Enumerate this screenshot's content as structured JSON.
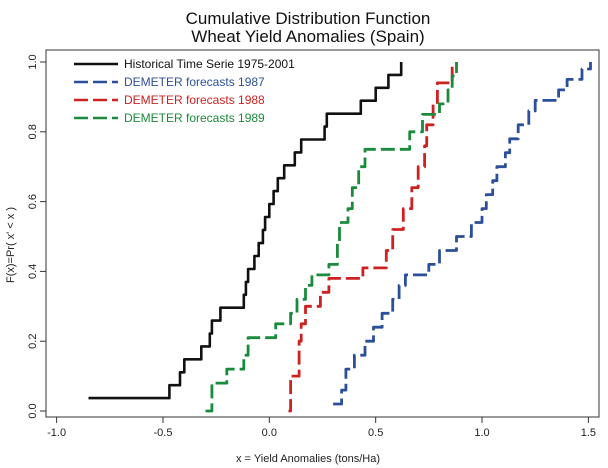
{
  "chart_data": {
    "type": "line",
    "title": "Cumulative Distribution Function",
    "subtitle": "Wheat Yield Anomalies (Spain)",
    "xlabel": "x = Yield Anomalies (tons/Ha)",
    "ylabel": "F(x)=Pr( x' < x )",
    "xlim": [
      -1.05,
      1.55
    ],
    "ylim": [
      0.0,
      1.0
    ],
    "x_ticks": [
      "-1.0",
      "-0.5",
      "0.0",
      "0.5",
      "1.0",
      "1.5"
    ],
    "y_ticks": [
      "0.0",
      "0.2",
      "0.4",
      "0.6",
      "0.8",
      "1.0"
    ],
    "grid": false,
    "legend_position": "top-left",
    "series": [
      {
        "name": "Historical Time Serie 1975-2001",
        "color": "#111111",
        "style": "solid",
        "points": [
          [
            -0.85,
            0.037
          ],
          [
            -0.47,
            0.074
          ],
          [
            -0.42,
            0.111
          ],
          [
            -0.4,
            0.148
          ],
          [
            -0.32,
            0.185
          ],
          [
            -0.28,
            0.222
          ],
          [
            -0.27,
            0.259
          ],
          [
            -0.23,
            0.296
          ],
          [
            -0.12,
            0.333
          ],
          [
            -0.11,
            0.37
          ],
          [
            -0.1,
            0.407
          ],
          [
            -0.07,
            0.444
          ],
          [
            -0.05,
            0.481
          ],
          [
            -0.03,
            0.519
          ],
          [
            -0.02,
            0.556
          ],
          [
            0.0,
            0.593
          ],
          [
            0.02,
            0.63
          ],
          [
            0.04,
            0.667
          ],
          [
            0.07,
            0.704
          ],
          [
            0.12,
            0.741
          ],
          [
            0.15,
            0.778
          ],
          [
            0.26,
            0.815
          ],
          [
            0.27,
            0.852
          ],
          [
            0.43,
            0.889
          ],
          [
            0.5,
            0.926
          ],
          [
            0.56,
            0.963
          ],
          [
            0.62,
            1.0
          ]
        ]
      },
      {
        "name": "DEMETER forecasts 1987",
        "color": "#2b4f9a",
        "style": "dashed",
        "points": [
          [
            0.3,
            0.02
          ],
          [
            0.34,
            0.06
          ],
          [
            0.36,
            0.12
          ],
          [
            0.4,
            0.16
          ],
          [
            0.45,
            0.2
          ],
          [
            0.49,
            0.24
          ],
          [
            0.53,
            0.28
          ],
          [
            0.58,
            0.32
          ],
          [
            0.61,
            0.36
          ],
          [
            0.64,
            0.39
          ],
          [
            0.75,
            0.42
          ],
          [
            0.8,
            0.46
          ],
          [
            0.88,
            0.5
          ],
          [
            0.95,
            0.54
          ],
          [
            1.0,
            0.58
          ],
          [
            1.02,
            0.62
          ],
          [
            1.05,
            0.66
          ],
          [
            1.07,
            0.7
          ],
          [
            1.11,
            0.74
          ],
          [
            1.13,
            0.78
          ],
          [
            1.17,
            0.82
          ],
          [
            1.22,
            0.86
          ],
          [
            1.25,
            0.89
          ],
          [
            1.36,
            0.92
          ],
          [
            1.4,
            0.95
          ],
          [
            1.47,
            0.98
          ],
          [
            1.51,
            1.0
          ]
        ]
      },
      {
        "name": "DEMETER forecasts 1988",
        "color": "#cc2222",
        "style": "dashed",
        "points": [
          [
            0.09,
            0.0
          ],
          [
            0.1,
            0.1
          ],
          [
            0.14,
            0.2
          ],
          [
            0.15,
            0.25
          ],
          [
            0.17,
            0.3
          ],
          [
            0.24,
            0.34
          ],
          [
            0.28,
            0.38
          ],
          [
            0.44,
            0.41
          ],
          [
            0.55,
            0.46
          ],
          [
            0.58,
            0.52
          ],
          [
            0.63,
            0.58
          ],
          [
            0.67,
            0.64
          ],
          [
            0.7,
            0.7
          ],
          [
            0.73,
            0.76
          ],
          [
            0.74,
            0.82
          ],
          [
            0.77,
            0.88
          ],
          [
            0.79,
            0.94
          ],
          [
            0.86,
            1.0
          ]
        ]
      },
      {
        "name": "DEMETER forecasts 1989",
        "color": "#1a8a3c",
        "style": "dashed",
        "points": [
          [
            -0.3,
            0.0
          ],
          [
            -0.27,
            0.08
          ],
          [
            -0.2,
            0.12
          ],
          [
            -0.12,
            0.16
          ],
          [
            -0.1,
            0.21
          ],
          [
            0.03,
            0.25
          ],
          [
            0.1,
            0.28
          ],
          [
            0.13,
            0.32
          ],
          [
            0.17,
            0.36
          ],
          [
            0.2,
            0.39
          ],
          [
            0.28,
            0.42
          ],
          [
            0.32,
            0.48
          ],
          [
            0.33,
            0.54
          ],
          [
            0.37,
            0.58
          ],
          [
            0.39,
            0.64
          ],
          [
            0.42,
            0.7
          ],
          [
            0.45,
            0.75
          ],
          [
            0.66,
            0.8
          ],
          [
            0.72,
            0.85
          ],
          [
            0.8,
            0.88
          ],
          [
            0.84,
            0.92
          ],
          [
            0.86,
            0.96
          ],
          [
            0.88,
            1.0
          ]
        ]
      }
    ]
  }
}
